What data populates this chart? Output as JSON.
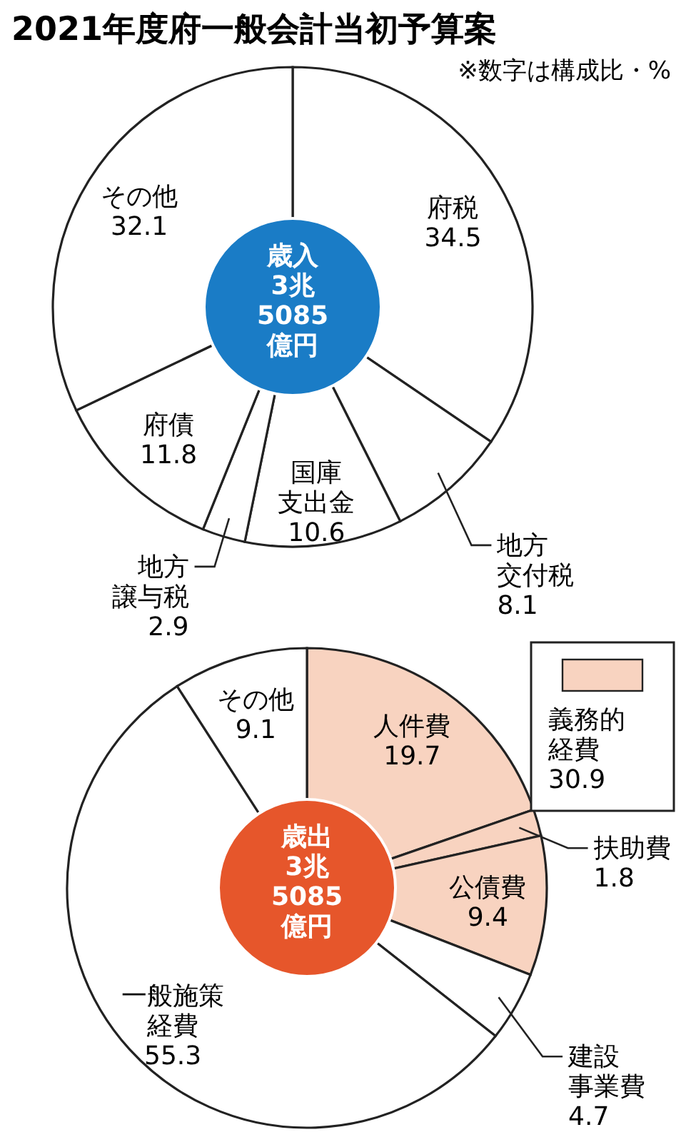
{
  "chart_data": [
    {
      "type": "donut",
      "title": "2021年度府一般会計当初予算案",
      "subtitle": "※数字は構成比・%",
      "categories": [
        "府税",
        "地方交付税",
        "国庫支出金",
        "地方譲与税",
        "府債",
        "その他"
      ],
      "values": [
        34.5,
        8.1,
        10.6,
        2.9,
        11.8,
        32.1
      ],
      "colors": [
        "#ffffff",
        "#ffffff",
        "#ffffff",
        "#ffffff",
        "#ffffff",
        "#ffffff"
      ],
      "data_labels": true,
      "annotations": [
        "歳入3兆5085億円"
      ]
    },
    {
      "type": "donut",
      "categories": [
        "人件費",
        "扶助費",
        "公債費",
        "建設事業費",
        "一般施策経費",
        "その他"
      ],
      "values": [
        19.7,
        1.8,
        9.4,
        4.7,
        55.3,
        9.1
      ],
      "colors": [
        "#f8d3c0",
        "#f8d3c0",
        "#f8d3c0",
        "#ffffff",
        "#ffffff",
        "#ffffff"
      ],
      "data_labels": true,
      "annotations": [
        "歳出3兆5085億円",
        "義務的経費30.9"
      ]
    }
  ]
}
